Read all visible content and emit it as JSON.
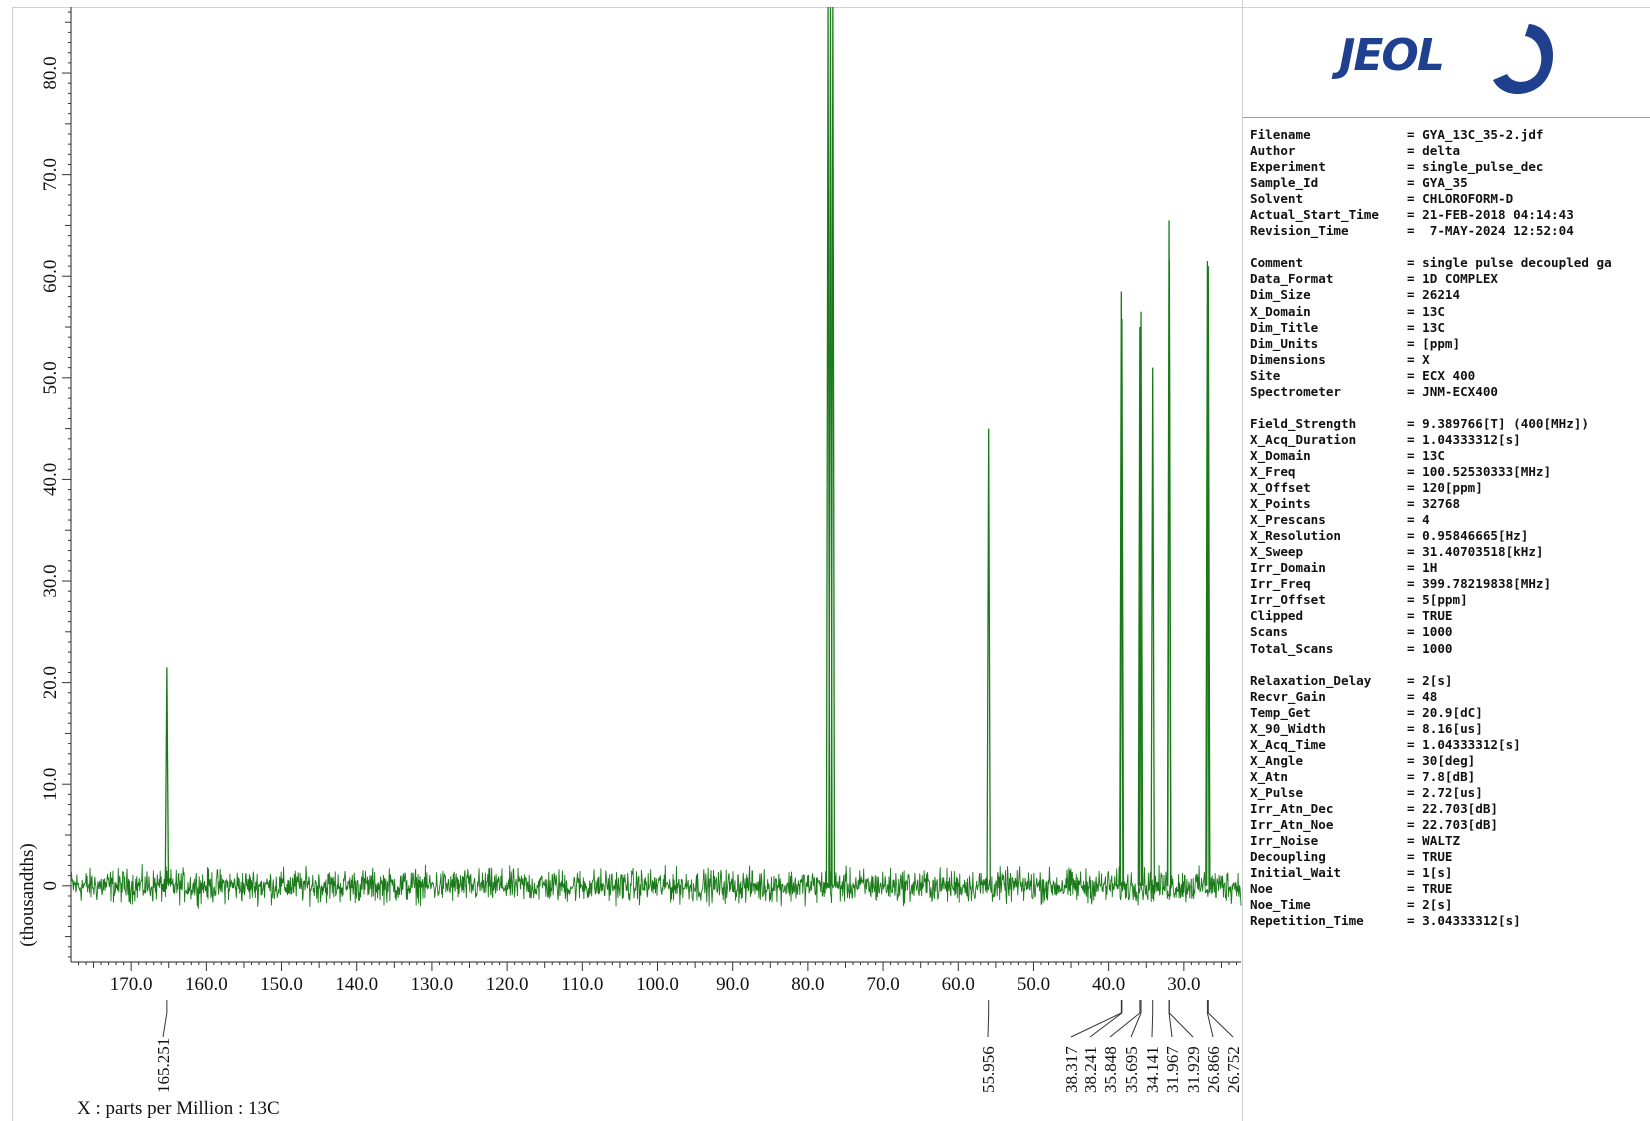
{
  "chart_data": {
    "type": "line",
    "title": "",
    "xlabel": "X : parts per Million : 13C",
    "ylabel": "(thousandths)",
    "xlim": [
      178,
      22.4
    ],
    "ylim": [
      -7.5,
      86.5
    ],
    "x_reversed": true,
    "x_ticks": [
      170,
      160,
      150,
      140,
      130,
      120,
      110,
      100,
      90,
      80,
      70,
      60,
      50,
      40,
      30
    ],
    "x_tick_labels": [
      "170.0",
      "160.0",
      "150.0",
      "140.0",
      "130.0",
      "120.0",
      "110.0",
      "100.0",
      "90.0",
      "80.0",
      "70.0",
      "60.0",
      "50.0",
      "40.0",
      "30.0"
    ],
    "y_ticks": [
      0,
      10,
      20,
      30,
      40,
      50,
      60,
      70,
      80
    ],
    "y_tick_labels": [
      "0",
      "10.0",
      "20.0",
      "30.0",
      "40.0",
      "50.0",
      "60.0",
      "70.0",
      "80.0"
    ],
    "series": [
      {
        "color": "#1a7a1a",
        "noise_amplitude": 1.0,
        "peaks": [
          {
            "x": 165.251,
            "y": 21.5
          },
          {
            "x": 77.32,
            "y": 90
          },
          {
            "x": 77.0,
            "y": 90
          },
          {
            "x": 76.68,
            "y": 90
          },
          {
            "x": 55.956,
            "y": 45
          },
          {
            "x": 38.317,
            "y": 58.5
          },
          {
            "x": 38.241,
            "y": 55.8
          },
          {
            "x": 35.848,
            "y": 55
          },
          {
            "x": 35.695,
            "y": 56.5
          },
          {
            "x": 34.141,
            "y": 51
          },
          {
            "x": 31.967,
            "y": 65.5
          },
          {
            "x": 31.929,
            "y": 61.5
          },
          {
            "x": 26.866,
            "y": 61.5
          },
          {
            "x": 26.752,
            "y": 61
          }
        ]
      }
    ],
    "peak_labels": [
      "165.251",
      "55.956",
      "38.317",
      "38.241",
      "35.848",
      "35.695",
      "34.141",
      "31.967",
      "31.929",
      "26.866",
      "26.752"
    ],
    "grid": false
  },
  "logo": {
    "text": "JEOL"
  },
  "parameters": [
    {
      "key": "Filename",
      "value": "= GYA_13C_35-2.jdf"
    },
    {
      "key": "Author",
      "value": "= delta"
    },
    {
      "key": "Experiment",
      "value": "= single_pulse_dec"
    },
    {
      "key": "Sample_Id",
      "value": "= GYA_35"
    },
    {
      "key": "Solvent",
      "value": "= CHLOROFORM-D"
    },
    {
      "key": "Actual_Start_Time",
      "value": "= 21-FEB-2018 04:14:43"
    },
    {
      "key": "Revision_Time",
      "value": "=  7-MAY-2024 12:52:04"
    },
    {
      "gap": true
    },
    {
      "key": "Comment",
      "value": "= single pulse decoupled ga"
    },
    {
      "key": "Data_Format",
      "value": "= 1D COMPLEX"
    },
    {
      "key": "Dim_Size",
      "value": "= 26214"
    },
    {
      "key": "X_Domain",
      "value": "= 13C"
    },
    {
      "key": "Dim_Title",
      "value": "= 13C"
    },
    {
      "key": "Dim_Units",
      "value": "= [ppm]"
    },
    {
      "key": "Dimensions",
      "value": "= X"
    },
    {
      "key": "Site",
      "value": "= ECX 400"
    },
    {
      "key": "Spectrometer",
      "value": "= JNM-ECX400"
    },
    {
      "gap": true
    },
    {
      "key": "Field_Strength",
      "value": "= 9.389766[T] (400[MHz])"
    },
    {
      "key": "X_Acq_Duration",
      "value": "= 1.04333312[s]"
    },
    {
      "key": "X_Domain",
      "value": "= 13C"
    },
    {
      "key": "X_Freq",
      "value": "= 100.52530333[MHz]"
    },
    {
      "key": "X_Offset",
      "value": "= 120[ppm]"
    },
    {
      "key": "X_Points",
      "value": "= 32768"
    },
    {
      "key": "X_Prescans",
      "value": "= 4"
    },
    {
      "key": "X_Resolution",
      "value": "= 0.95846665[Hz]"
    },
    {
      "key": "X_Sweep",
      "value": "= 31.40703518[kHz]"
    },
    {
      "key": "Irr_Domain",
      "value": "= 1H"
    },
    {
      "key": "Irr_Freq",
      "value": "= 399.78219838[MHz]"
    },
    {
      "key": "Irr_Offset",
      "value": "= 5[ppm]"
    },
    {
      "key": "Clipped",
      "value": "= TRUE"
    },
    {
      "key": "Scans",
      "value": "= 1000"
    },
    {
      "key": "Total_Scans",
      "value": "= 1000"
    },
    {
      "gap": true
    },
    {
      "key": "Relaxation_Delay",
      "value": "= 2[s]"
    },
    {
      "key": "Recvr_Gain",
      "value": "= 48"
    },
    {
      "key": "Temp_Get",
      "value": "= 20.9[dC]"
    },
    {
      "key": "X_90_Width",
      "value": "= 8.16[us]"
    },
    {
      "key": "X_Acq_Time",
      "value": "= 1.04333312[s]"
    },
    {
      "key": "X_Angle",
      "value": "= 30[deg]"
    },
    {
      "key": "X_Atn",
      "value": "= 7.8[dB]"
    },
    {
      "key": "X_Pulse",
      "value": "= 2.72[us]"
    },
    {
      "key": "Irr_Atn_Dec",
      "value": "= 22.703[dB]"
    },
    {
      "key": "Irr_Atn_Noe",
      "value": "= 22.703[dB]"
    },
    {
      "key": "Irr_Noise",
      "value": "= WALTZ"
    },
    {
      "key": "Decoupling",
      "value": "= TRUE"
    },
    {
      "key": "Initial_Wait",
      "value": "= 1[s]"
    },
    {
      "key": "Noe",
      "value": "= TRUE"
    },
    {
      "key": "Noe_Time",
      "value": "= 2[s]"
    },
    {
      "key": "Repetition_Time",
      "value": "= 3.04333312[s]"
    }
  ]
}
